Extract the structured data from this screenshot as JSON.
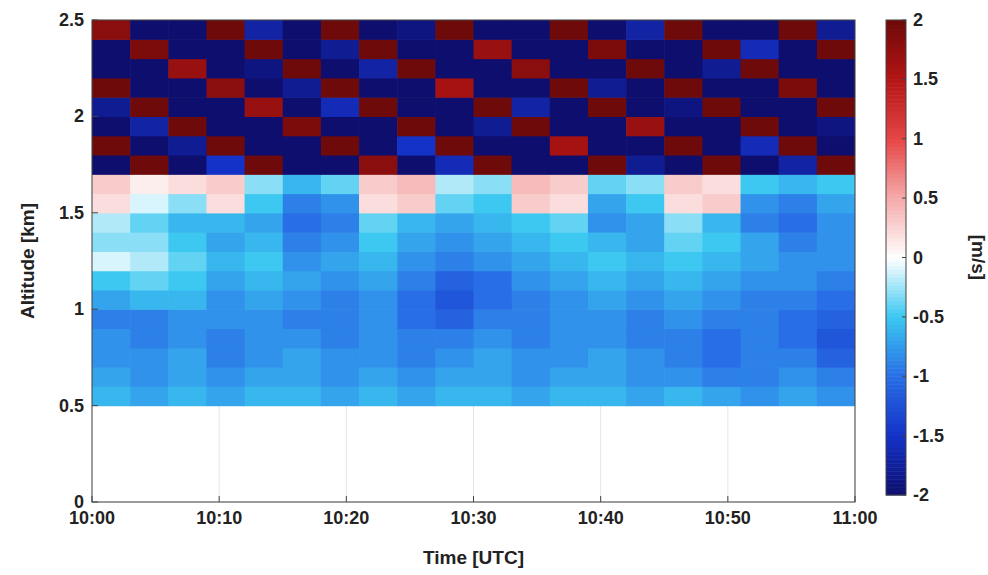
{
  "chart_data": {
    "type": "heatmap",
    "x_label": "Time [UTC]",
    "y_label": "Altitude [km]",
    "colorbar_label": "[m/s]",
    "xlim": [
      0,
      60
    ],
    "ylim": [
      0,
      2.5
    ],
    "xticks": [
      {
        "value": 0,
        "label": "10:00"
      },
      {
        "value": 10,
        "label": "10:10"
      },
      {
        "value": 20,
        "label": "10:20"
      },
      {
        "value": 30,
        "label": "10:30"
      },
      {
        "value": 40,
        "label": "10:40"
      },
      {
        "value": 50,
        "label": "10:50"
      },
      {
        "value": 60,
        "label": "11:00"
      }
    ],
    "yticks": [
      0,
      0.5,
      1,
      1.5,
      2,
      2.5
    ],
    "grid": true,
    "x": [
      1.5,
      4.5,
      7.5,
      10.5,
      13.5,
      16.5,
      19.5,
      22.5,
      25.5,
      28.5,
      31.5,
      34.5,
      37.5,
      40.5,
      43.5,
      46.5,
      49.5,
      52.5,
      55.5,
      58.5
    ],
    "y": [
      0.55,
      0.65,
      0.75,
      0.85,
      0.95,
      1.05,
      1.15,
      1.25,
      1.35,
      1.45,
      1.55,
      1.65,
      1.75,
      1.85,
      1.95,
      2.05,
      2.15,
      2.25,
      2.35,
      2.45
    ],
    "cells": [
      [
        -0.6,
        -0.7,
        -0.6,
        -0.7,
        -0.6,
        -0.6,
        -0.7,
        -0.6,
        -0.7,
        -0.6,
        -0.6,
        -0.7,
        -0.6,
        -0.6,
        -0.7,
        -0.6,
        -0.7,
        -0.8,
        -0.7,
        -0.8
      ],
      [
        -0.7,
        -0.8,
        -0.7,
        -0.8,
        -0.7,
        -0.7,
        -0.8,
        -0.7,
        -0.8,
        -0.7,
        -0.7,
        -0.8,
        -0.7,
        -0.7,
        -0.8,
        -0.8,
        -0.9,
        -0.9,
        -0.8,
        -0.9
      ],
      [
        -0.8,
        -0.8,
        -0.7,
        -0.9,
        -0.8,
        -0.7,
        -0.8,
        -0.8,
        -0.9,
        -0.8,
        -0.7,
        -0.8,
        -0.8,
        -0.7,
        -0.8,
        -0.9,
        -1.0,
        -0.9,
        -0.9,
        -1.1
      ],
      [
        -0.8,
        -0.9,
        -0.8,
        -0.9,
        -0.8,
        -0.8,
        -0.9,
        -0.8,
        -0.9,
        -0.9,
        -0.8,
        -0.9,
        -0.8,
        -0.8,
        -0.9,
        -0.9,
        -1.0,
        -0.9,
        -1.0,
        -1.2
      ],
      [
        -0.9,
        -0.9,
        -0.8,
        -0.8,
        -0.8,
        -0.9,
        -0.9,
        -0.8,
        -1.0,
        -1.1,
        -0.9,
        -0.9,
        -0.8,
        -0.8,
        -0.9,
        -0.8,
        -0.9,
        -0.9,
        -1.0,
        -1.1
      ],
      [
        -0.7,
        -0.6,
        -0.6,
        -0.8,
        -0.7,
        -0.8,
        -0.9,
        -0.8,
        -1.0,
        -1.2,
        -1.0,
        -0.9,
        -0.8,
        -0.7,
        -0.8,
        -0.7,
        -0.8,
        -0.9,
        -0.9,
        -1.0
      ],
      [
        -0.5,
        -0.4,
        -0.5,
        -0.7,
        -0.6,
        -0.7,
        -0.8,
        -0.7,
        -0.9,
        -1.1,
        -1.0,
        -0.8,
        -0.7,
        -0.6,
        -0.7,
        -0.6,
        -0.7,
        -0.8,
        -0.8,
        -0.9
      ],
      [
        -0.1,
        -0.2,
        -0.4,
        -0.6,
        -0.5,
        -0.8,
        -0.7,
        -0.6,
        -0.8,
        -0.9,
        -0.8,
        -0.7,
        -0.6,
        -0.5,
        -0.6,
        -0.5,
        -0.6,
        -0.7,
        -0.8,
        -0.8
      ],
      [
        -0.3,
        -0.3,
        -0.5,
        -0.7,
        -0.6,
        -0.9,
        -0.8,
        -0.5,
        -0.7,
        -0.8,
        -0.7,
        -0.6,
        -0.5,
        -0.6,
        -0.7,
        -0.4,
        -0.5,
        -0.7,
        -0.9,
        -0.8
      ],
      [
        -0.2,
        -0.4,
        -0.6,
        -0.6,
        -0.7,
        -1.0,
        -0.9,
        -0.4,
        -0.6,
        -0.7,
        -0.6,
        -0.5,
        -0.4,
        -0.8,
        -0.7,
        -0.3,
        -0.6,
        -0.9,
        -1.0,
        -0.8
      ],
      [
        0.2,
        -0.1,
        -0.3,
        0.2,
        -0.5,
        -0.9,
        -0.8,
        0.2,
        0.3,
        -0.4,
        -0.5,
        0.3,
        0.2,
        -0.7,
        -0.5,
        0.2,
        0.3,
        -0.8,
        -0.9,
        -0.7
      ],
      [
        0.3,
        0.1,
        0.2,
        0.3,
        -0.3,
        -0.6,
        -0.4,
        0.3,
        0.4,
        -0.2,
        -0.3,
        0.4,
        0.3,
        -0.4,
        -0.3,
        0.3,
        0.2,
        -0.5,
        -0.6,
        -0.5
      ],
      [
        -2,
        2,
        -2,
        -1.5,
        2,
        -2,
        -2,
        1.8,
        -2,
        -1.6,
        2,
        -2,
        -2,
        2,
        -1.8,
        -2,
        2,
        -2,
        -1.7,
        2
      ],
      [
        2,
        -2,
        -1.8,
        2,
        -2,
        -2,
        2,
        -2,
        -1.5,
        2,
        -2,
        -2,
        1.6,
        -2,
        -2,
        2,
        -2,
        -1.6,
        2,
        -2
      ],
      [
        -2,
        -1.7,
        2,
        -2,
        -2,
        1.9,
        -2,
        -2,
        2,
        -2,
        -1.8,
        2,
        -2,
        -2,
        1.7,
        -2,
        -2,
        2,
        -2,
        -1.9
      ],
      [
        -1.8,
        2,
        -2,
        -2,
        1.7,
        -2,
        -1.6,
        2,
        -2,
        -2,
        2,
        -1.7,
        -2,
        2,
        -2,
        -1.9,
        2,
        -2,
        -2,
        2
      ],
      [
        2,
        -2,
        -2,
        1.8,
        -2,
        -1.8,
        2,
        -2,
        -2,
        1.6,
        -2,
        -2,
        2,
        -1.8,
        -2,
        2,
        -2,
        -2,
        1.9,
        -2
      ],
      [
        -2,
        -2,
        1.7,
        -2,
        -1.9,
        2,
        -2,
        -1.7,
        2,
        -2,
        -2,
        1.8,
        -2,
        -2,
        2,
        -2,
        -1.8,
        2,
        -2,
        -2
      ],
      [
        -2,
        1.9,
        -2,
        -2,
        2,
        -2,
        -1.8,
        2,
        -2,
        -2,
        1.7,
        -2,
        -2,
        1.9,
        -2,
        -2,
        2,
        -1.6,
        -2,
        2
      ],
      [
        1.8,
        -2,
        -2,
        2,
        -1.7,
        -2,
        2,
        -2,
        -1.9,
        2,
        -2,
        -2,
        2,
        -2,
        -1.7,
        2,
        -2,
        -2,
        2,
        -1.8
      ]
    ],
    "color_range": [
      -2,
      2
    ],
    "color_ticks": [
      -2,
      -1.5,
      -1,
      -0.5,
      0,
      0.5,
      1,
      1.5,
      2
    ]
  }
}
